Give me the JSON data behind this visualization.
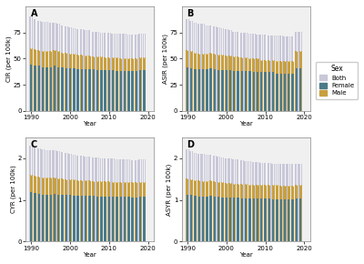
{
  "years": [
    1990,
    1991,
    1992,
    1993,
    1994,
    1995,
    1996,
    1997,
    1998,
    1999,
    2000,
    2001,
    2002,
    2003,
    2004,
    2005,
    2006,
    2007,
    2008,
    2009,
    2010,
    2011,
    2012,
    2013,
    2014,
    2015,
    2016,
    2017,
    2018,
    2019
  ],
  "panel_labels": [
    "A",
    "B",
    "C",
    "D"
  ],
  "ylabels": [
    "CIR (per 100k)",
    "ASIR (per 100k)",
    "CYR (per 100k)",
    "ASYR (per 100k)"
  ],
  "color_both": "#c8c8d8",
  "color_female": "#4a7a8a",
  "color_male": "#c8a040",
  "background_color": "#ffffff",
  "panel_bg": "#f0f0f0",
  "CIR": {
    "both_vals": [
      52,
      51,
      50,
      50,
      50,
      50,
      51,
      50,
      50,
      49,
      49,
      49,
      49,
      48,
      48,
      48,
      48,
      48,
      48,
      48,
      48,
      48,
      47,
      47,
      47,
      47,
      47,
      47,
      48,
      48
    ],
    "both_upper": [
      90,
      88,
      86,
      85,
      85,
      84,
      84,
      83,
      82,
      81,
      80,
      79,
      78,
      78,
      77,
      77,
      76,
      76,
      75,
      75,
      75,
      74,
      74,
      74,
      74,
      73,
      73,
      73,
      74,
      74
    ],
    "female_vals": [
      44,
      43,
      43,
      42,
      42,
      42,
      43,
      42,
      42,
      41,
      41,
      41,
      40,
      40,
      40,
      40,
      40,
      39,
      39,
      39,
      39,
      39,
      38,
      38,
      38,
      38,
      38,
      38,
      39,
      39
    ],
    "male_vals": [
      60,
      59,
      58,
      57,
      57,
      57,
      58,
      57,
      56,
      56,
      55,
      55,
      54,
      54,
      53,
      53,
      52,
      52,
      52,
      51,
      51,
      51,
      51,
      50,
      50,
      50,
      50,
      50,
      51,
      51
    ],
    "ylim": [
      0,
      100
    ],
    "yticks": [
      0,
      25,
      50,
      75
    ]
  },
  "ASIR": {
    "both_vals": [
      50,
      49,
      48,
      48,
      48,
      48,
      49,
      48,
      47,
      47,
      47,
      47,
      46,
      46,
      46,
      46,
      46,
      45,
      45,
      45,
      45,
      45,
      45,
      44,
      44,
      44,
      44,
      44,
      50,
      50
    ],
    "both_upper": [
      88,
      86,
      84,
      83,
      83,
      82,
      82,
      81,
      80,
      79,
      78,
      77,
      76,
      76,
      75,
      75,
      74,
      74,
      73,
      73,
      73,
      72,
      72,
      72,
      72,
      71,
      71,
      71,
      76,
      76
    ],
    "female_vals": [
      42,
      41,
      40,
      40,
      40,
      40,
      41,
      40,
      39,
      39,
      39,
      39,
      38,
      38,
      38,
      38,
      38,
      37,
      37,
      37,
      37,
      37,
      37,
      36,
      36,
      36,
      36,
      36,
      41,
      41
    ],
    "male_vals": [
      58,
      57,
      56,
      55,
      55,
      55,
      56,
      55,
      54,
      54,
      53,
      53,
      52,
      52,
      51,
      51,
      50,
      50,
      50,
      49,
      49,
      49,
      49,
      48,
      48,
      48,
      48,
      48,
      57,
      57
    ],
    "ylim": [
      0,
      100
    ],
    "yticks": [
      0,
      25,
      50,
      75
    ]
  },
  "CYR": {
    "both_vals": [
      1.38,
      1.36,
      1.34,
      1.33,
      1.33,
      1.33,
      1.34,
      1.33,
      1.32,
      1.32,
      1.31,
      1.3,
      1.3,
      1.3,
      1.29,
      1.29,
      1.29,
      1.29,
      1.28,
      1.28,
      1.28,
      1.28,
      1.27,
      1.27,
      1.27,
      1.27,
      1.27,
      1.27,
      1.28,
      1.28
    ],
    "both_upper": [
      2.3,
      2.26,
      2.22,
      2.2,
      2.19,
      2.18,
      2.18,
      2.16,
      2.14,
      2.12,
      2.1,
      2.08,
      2.06,
      2.05,
      2.04,
      2.03,
      2.02,
      2.01,
      2.0,
      1.99,
      1.99,
      1.98,
      1.97,
      1.97,
      1.96,
      1.96,
      1.95,
      1.95,
      1.97,
      1.97
    ],
    "female_vals": [
      1.18,
      1.16,
      1.14,
      1.13,
      1.13,
      1.13,
      1.14,
      1.13,
      1.12,
      1.11,
      1.11,
      1.1,
      1.1,
      1.09,
      1.09,
      1.09,
      1.09,
      1.08,
      1.08,
      1.08,
      1.08,
      1.07,
      1.07,
      1.07,
      1.07,
      1.07,
      1.06,
      1.06,
      1.07,
      1.07
    ],
    "male_vals": [
      1.6,
      1.58,
      1.55,
      1.54,
      1.53,
      1.53,
      1.54,
      1.52,
      1.51,
      1.5,
      1.49,
      1.48,
      1.47,
      1.47,
      1.46,
      1.46,
      1.45,
      1.45,
      1.44,
      1.44,
      1.44,
      1.43,
      1.43,
      1.43,
      1.42,
      1.42,
      1.42,
      1.42,
      1.43,
      1.43
    ],
    "ylim": [
      0,
      2.5
    ],
    "yticks": [
      0,
      1,
      2
    ]
  },
  "ASYR": {
    "both_vals": [
      1.33,
      1.31,
      1.29,
      1.28,
      1.28,
      1.28,
      1.29,
      1.28,
      1.27,
      1.26,
      1.26,
      1.25,
      1.25,
      1.25,
      1.24,
      1.24,
      1.24,
      1.23,
      1.23,
      1.23,
      1.23,
      1.22,
      1.22,
      1.22,
      1.22,
      1.22,
      1.21,
      1.21,
      1.23,
      1.23
    ],
    "both_upper": [
      2.2,
      2.16,
      2.12,
      2.1,
      2.09,
      2.08,
      2.08,
      2.06,
      2.04,
      2.02,
      2.0,
      1.98,
      1.96,
      1.96,
      1.94,
      1.93,
      1.92,
      1.91,
      1.9,
      1.89,
      1.89,
      1.88,
      1.87,
      1.87,
      1.87,
      1.86,
      1.86,
      1.85,
      1.87,
      1.87
    ],
    "female_vals": [
      1.13,
      1.11,
      1.09,
      1.08,
      1.08,
      1.08,
      1.09,
      1.08,
      1.07,
      1.06,
      1.06,
      1.05,
      1.05,
      1.05,
      1.04,
      1.04,
      1.04,
      1.03,
      1.03,
      1.03,
      1.03,
      1.03,
      1.02,
      1.02,
      1.02,
      1.02,
      1.02,
      1.01,
      1.03,
      1.03
    ],
    "male_vals": [
      1.52,
      1.5,
      1.47,
      1.46,
      1.45,
      1.45,
      1.46,
      1.44,
      1.43,
      1.42,
      1.41,
      1.4,
      1.39,
      1.39,
      1.38,
      1.38,
      1.37,
      1.37,
      1.36,
      1.36,
      1.36,
      1.35,
      1.35,
      1.35,
      1.34,
      1.34,
      1.34,
      1.33,
      1.35,
      1.35
    ],
    "ylim": [
      0,
      2.5
    ],
    "yticks": [
      0,
      1,
      2
    ]
  },
  "xticks": [
    1990,
    2000,
    2010,
    2020
  ],
  "legend_labels": [
    "Both",
    "Female",
    "Male"
  ]
}
